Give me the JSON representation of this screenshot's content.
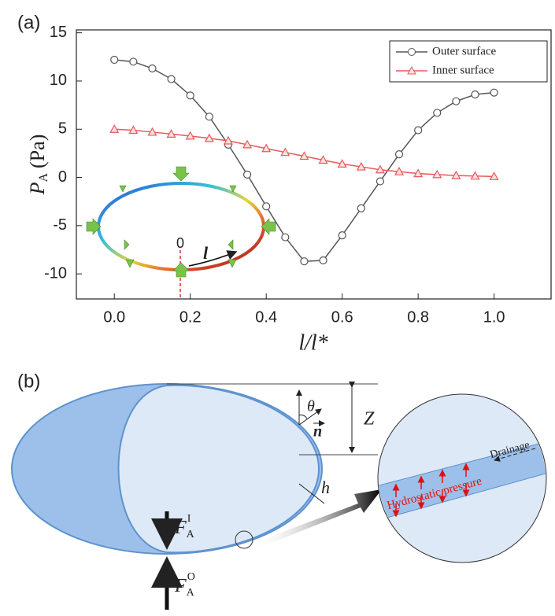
{
  "chart_data": {
    "type": "line",
    "panel_label": "(a)",
    "ylabel": {
      "main": "P",
      "sub": "A",
      "unit": "(Pa)"
    },
    "xlabel": "l/l*",
    "x": [
      0,
      0.05,
      0.1,
      0.15,
      0.2,
      0.25,
      0.3,
      0.35,
      0.4,
      0.45,
      0.5,
      0.55,
      0.6,
      0.65,
      0.7,
      0.75,
      0.8,
      0.85,
      0.9,
      0.95,
      1.0
    ],
    "series": [
      {
        "name": "Outer surface",
        "color": "#555555",
        "marker": "circle",
        "values": [
          12.2,
          12.0,
          11.3,
          10.2,
          8.5,
          6.3,
          3.4,
          0.3,
          -3.0,
          -6.2,
          -8.7,
          -8.6,
          -6.0,
          -3.2,
          -0.4,
          2.4,
          4.9,
          6.7,
          7.9,
          8.6,
          8.8
        ]
      },
      {
        "name": "Inner surface",
        "color": "#e8585a",
        "marker": "triangle",
        "values": [
          5.0,
          4.9,
          4.7,
          4.5,
          4.3,
          4.05,
          3.8,
          3.4,
          3.0,
          2.6,
          2.2,
          1.8,
          1.4,
          1.1,
          0.8,
          0.6,
          0.4,
          0.3,
          0.2,
          0.15,
          0.1
        ]
      }
    ],
    "xlim": [
      -0.1,
      1.15
    ],
    "ylim": [
      -12.6,
      15.3
    ],
    "xticks": [
      {
        "value": 0,
        "label": "0.0"
      },
      0.2,
      0.4,
      0.6,
      0.8,
      {
        "value": 1,
        "label": "1.0"
      }
    ],
    "yticks": [
      -10,
      -5,
      0,
      5,
      10,
      15
    ],
    "legend": "upper right",
    "inset": {
      "origin_label": "0",
      "arc_label": "l"
    }
  },
  "diagram": {
    "panel_label": "(b)",
    "theta": "θ",
    "normal": "n",
    "height": "Z",
    "thickness": "h",
    "force_inner": {
      "main": "F",
      "sub": "A",
      "sup": "I"
    },
    "force_outer": {
      "main": "F",
      "sub": "A",
      "sup": "O"
    },
    "drainage": "Drainage",
    "pressure": "Hydrostatic pressure"
  }
}
